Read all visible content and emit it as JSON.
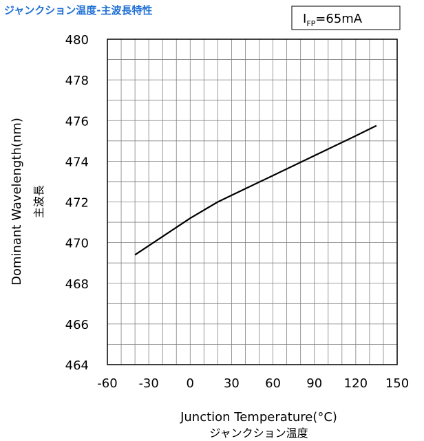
{
  "chart_data": {
    "type": "line",
    "title": "ジャンクション温度-主波長特性",
    "condition": {
      "symbol": "I",
      "subscript": "FP",
      "value": "=65mA"
    },
    "xlabel": "Junction Temperature(°C)",
    "xlabel_ja": "ジャンクション温度",
    "ylabel": "Dominant Wavelength(nm)",
    "ylabel_ja": "主波長",
    "xlim": [
      -60,
      150
    ],
    "ylim": [
      464,
      480
    ],
    "x_ticks": [
      -60,
      -30,
      0,
      30,
      60,
      90,
      120,
      150
    ],
    "y_ticks": [
      464,
      466,
      468,
      470,
      472,
      474,
      476,
      478,
      480
    ],
    "x_grid_step": 10,
    "y_grid_step": 1,
    "grid": true,
    "legend": "none",
    "colors": {
      "title": "#1f6fd6",
      "line": "#000000",
      "grid": "#808080",
      "axis": "#000000"
    },
    "series": [
      {
        "x": [
          -40,
          -20,
          0,
          20,
          40,
          60,
          80,
          100,
          120,
          135
        ],
        "y": [
          469.4,
          470.3,
          471.2,
          472.0,
          472.65,
          473.3,
          473.95,
          474.6,
          475.25,
          475.75
        ]
      }
    ]
  }
}
